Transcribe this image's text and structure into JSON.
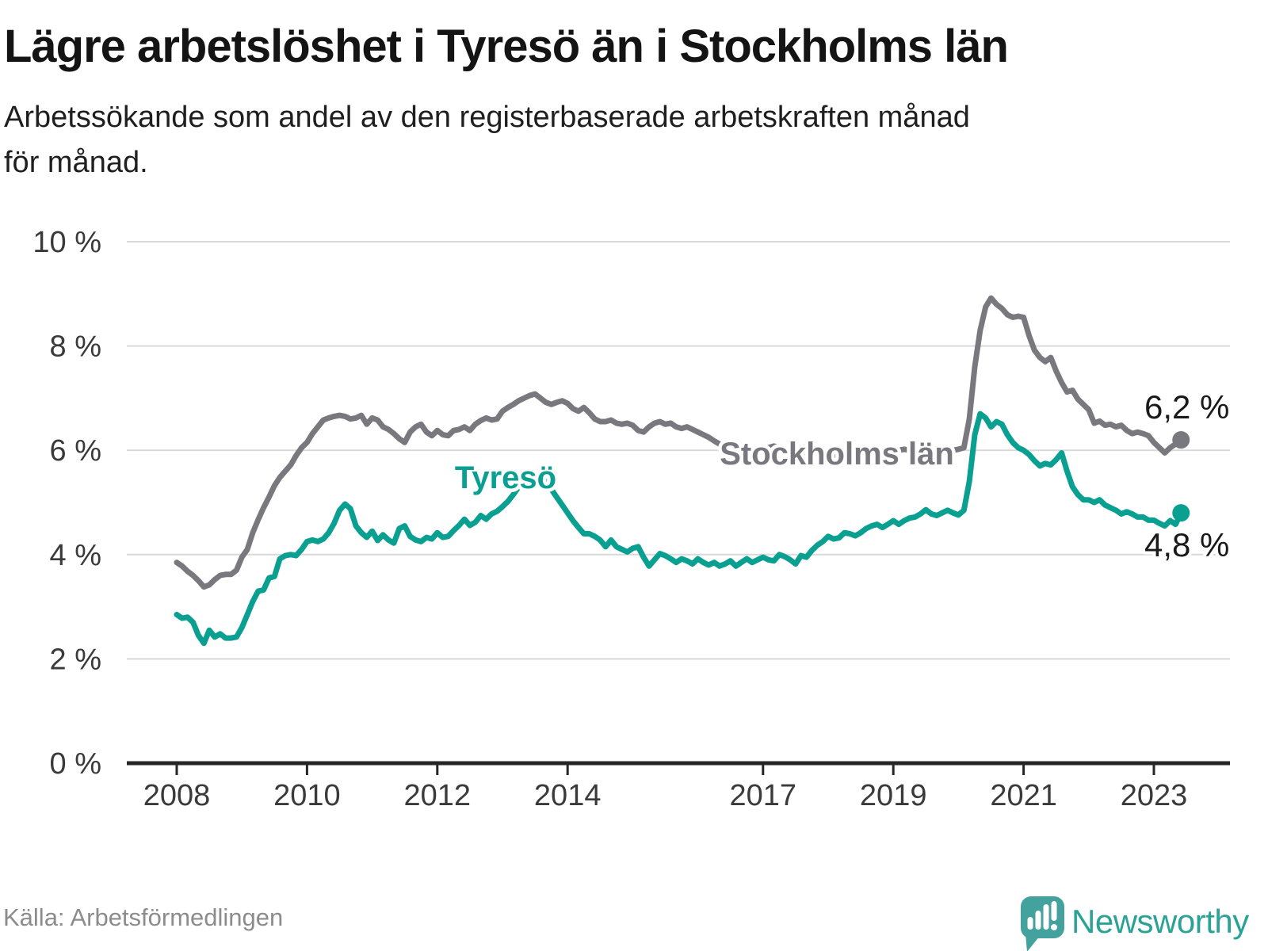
{
  "header": {
    "title": "Lägre arbetslöshet i Tyresö än i Stockholms län",
    "subtitle_line1": "Arbetssökande som andel av den registerbaserade arbetskraften månad",
    "subtitle_line2": "för månad."
  },
  "chart_data": {
    "type": "line",
    "unit": "%",
    "ylim": [
      0,
      10
    ],
    "grid": "horizontal",
    "y_ticks": [
      {
        "label": "10 %",
        "value": 10
      },
      {
        "label": "8 %",
        "value": 8
      },
      {
        "label": "6 %",
        "value": 6
      },
      {
        "label": "4 %",
        "value": 4
      },
      {
        "label": "2 %",
        "value": 2
      },
      {
        "label": "0 %",
        "value": 0
      }
    ],
    "x_ticks": [
      {
        "label": "2008",
        "year": 2008
      },
      {
        "label": "2010",
        "year": 2010
      },
      {
        "label": "2012",
        "year": 2012
      },
      {
        "label": "2014",
        "year": 2014
      },
      {
        "label": "2017",
        "year": 2017
      },
      {
        "label": "2019",
        "year": 2019
      },
      {
        "label": "2021",
        "year": 2021
      },
      {
        "label": "2023",
        "year": 2023
      }
    ],
    "start": {
      "year": 2008,
      "month": 1
    },
    "frequency": "monthly",
    "series": [
      {
        "name": "Stockholms län",
        "color": "#7a787f",
        "end_label": "6,2 %",
        "values": [
          3.85,
          3.78,
          3.68,
          3.6,
          3.5,
          3.38,
          3.42,
          3.52,
          3.6,
          3.62,
          3.62,
          3.7,
          3.95,
          4.1,
          4.42,
          4.67,
          4.9,
          5.1,
          5.32,
          5.48,
          5.6,
          5.72,
          5.9,
          6.05,
          6.15,
          6.32,
          6.45,
          6.58,
          6.62,
          6.65,
          6.67,
          6.65,
          6.6,
          6.62,
          6.67,
          6.5,
          6.62,
          6.58,
          6.45,
          6.4,
          6.32,
          6.22,
          6.15,
          6.35,
          6.45,
          6.5,
          6.35,
          6.28,
          6.38,
          6.3,
          6.28,
          6.38,
          6.4,
          6.45,
          6.38,
          6.5,
          6.57,
          6.62,
          6.58,
          6.6,
          6.75,
          6.82,
          6.88,
          6.95,
          7.0,
          7.05,
          7.08,
          7.0,
          6.92,
          6.88,
          6.92,
          6.95,
          6.9,
          6.8,
          6.75,
          6.82,
          6.72,
          6.6,
          6.55,
          6.55,
          6.58,
          6.52,
          6.5,
          6.52,
          6.48,
          6.38,
          6.35,
          6.45,
          6.52,
          6.55,
          6.5,
          6.52,
          6.45,
          6.42,
          6.45,
          6.4,
          6.35,
          6.3,
          6.25,
          6.18,
          6.12,
          6.08,
          6.05,
          6.02,
          6.0,
          6.0,
          5.98,
          5.98,
          6.02,
          6.05,
          6.08,
          6.05,
          6.02,
          6.0,
          5.98,
          5.95,
          5.95,
          5.92,
          5.92,
          5.9,
          5.9,
          5.88,
          5.85,
          5.85,
          5.82,
          5.8,
          5.82,
          5.85,
          5.88,
          5.9,
          5.92,
          5.95,
          5.98,
          6.0,
          6.02,
          6.0,
          6.02,
          6.03,
          6.05,
          6.03,
          6.02,
          6.0,
          6.0,
          6.0,
          6.02,
          6.05,
          6.6,
          7.6,
          8.3,
          8.75,
          8.92,
          8.8,
          8.72,
          8.6,
          8.55,
          8.57,
          8.55,
          8.2,
          7.92,
          7.78,
          7.7,
          7.78,
          7.52,
          7.3,
          7.12,
          7.15,
          6.98,
          6.88,
          6.78,
          6.52,
          6.56,
          6.48,
          6.5,
          6.45,
          6.48,
          6.38,
          6.32,
          6.35,
          6.32,
          6.28,
          6.15,
          6.05,
          5.95,
          6.05,
          6.12,
          6.2
        ]
      },
      {
        "name": "Tyresö",
        "color": "#0aa091",
        "end_label": "4,8 %",
        "values": [
          2.85,
          2.78,
          2.8,
          2.7,
          2.45,
          2.3,
          2.55,
          2.42,
          2.48,
          2.4,
          2.4,
          2.42,
          2.6,
          2.85,
          3.1,
          3.3,
          3.32,
          3.55,
          3.58,
          3.92,
          3.98,
          4.0,
          3.98,
          4.1,
          4.25,
          4.28,
          4.25,
          4.3,
          4.42,
          4.6,
          4.85,
          4.97,
          4.88,
          4.55,
          4.42,
          4.33,
          4.45,
          4.27,
          4.38,
          4.28,
          4.22,
          4.5,
          4.55,
          4.35,
          4.28,
          4.25,
          4.33,
          4.3,
          4.42,
          4.33,
          4.35,
          4.46,
          4.56,
          4.68,
          4.56,
          4.62,
          4.75,
          4.68,
          4.78,
          4.83,
          4.92,
          5.02,
          5.15,
          5.3,
          5.42,
          5.5,
          5.55,
          5.5,
          5.4,
          5.25,
          5.1,
          4.95,
          4.8,
          4.65,
          4.52,
          4.4,
          4.4,
          4.35,
          4.28,
          4.15,
          4.28,
          4.15,
          4.1,
          4.05,
          4.12,
          4.15,
          3.95,
          3.78,
          3.9,
          4.02,
          3.98,
          3.92,
          3.85,
          3.92,
          3.88,
          3.82,
          3.92,
          3.85,
          3.8,
          3.85,
          3.78,
          3.82,
          3.88,
          3.78,
          3.85,
          3.92,
          3.85,
          3.9,
          3.95,
          3.9,
          3.88,
          4.0,
          3.96,
          3.9,
          3.82,
          3.98,
          3.95,
          4.08,
          4.18,
          4.25,
          4.35,
          4.3,
          4.32,
          4.42,
          4.4,
          4.36,
          4.42,
          4.5,
          4.55,
          4.58,
          4.52,
          4.58,
          4.65,
          4.58,
          4.65,
          4.7,
          4.72,
          4.78,
          4.86,
          4.78,
          4.75,
          4.8,
          4.85,
          4.8,
          4.76,
          4.85,
          5.4,
          6.3,
          6.7,
          6.62,
          6.45,
          6.55,
          6.5,
          6.3,
          6.15,
          6.05,
          6.0,
          5.92,
          5.8,
          5.7,
          5.75,
          5.72,
          5.82,
          5.95,
          5.6,
          5.3,
          5.15,
          5.05,
          5.05,
          5.0,
          5.05,
          4.95,
          4.9,
          4.85,
          4.78,
          4.82,
          4.78,
          4.72,
          4.72,
          4.66,
          4.66,
          4.6,
          4.55,
          4.65,
          4.58,
          4.8
        ]
      }
    ],
    "colors": {
      "grid": "#d9d9d9",
      "axis": "#262626",
      "stockholm_line": "#7a787f",
      "tyreso_line": "#0aa091"
    }
  },
  "footer": {
    "source": "Källa: Arbetsförmedlingen",
    "brand": "Newsworthy"
  }
}
